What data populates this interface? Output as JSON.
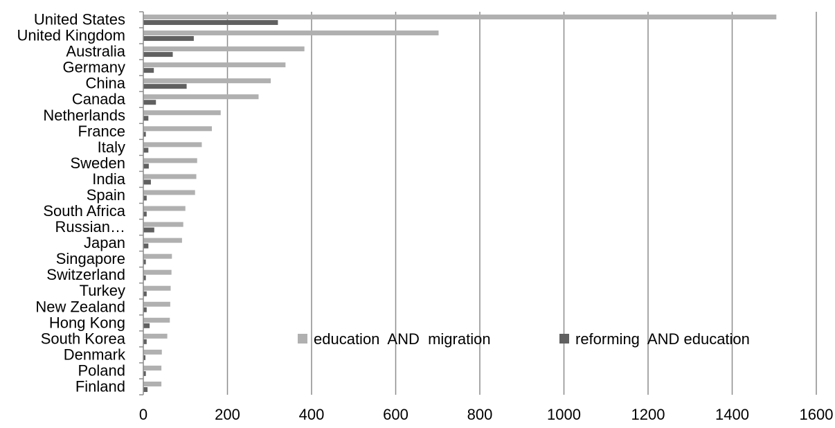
{
  "chart_data": {
    "type": "bar",
    "orientation": "horizontal",
    "categories": [
      "United States",
      "United Kingdom",
      "Australia",
      "Germany",
      "China",
      "Canada",
      "Netherlands",
      "France",
      "Italy",
      "Sweden",
      "India",
      "Spain",
      "South Africa",
      "Russian…",
      "Japan",
      "Singapore",
      "Switzerland",
      "Turkey",
      "New Zealand",
      "Hong Kong",
      "South Korea",
      "Denmark",
      "Poland",
      "Finland"
    ],
    "series": [
      {
        "name": "education  AND  migration",
        "color": "#b0b0b0",
        "values": [
          1505,
          702,
          383,
          338,
          303,
          274,
          184,
          163,
          139,
          128,
          126,
          123,
          100,
          95,
          92,
          68,
          67,
          65,
          64,
          63,
          57,
          44,
          43,
          43
        ]
      },
      {
        "name": "reforming  AND education",
        "color": "#606060",
        "values": [
          320,
          120,
          70,
          25,
          103,
          30,
          12,
          6,
          12,
          13,
          18,
          8,
          8,
          26,
          12,
          6,
          6,
          8,
          8,
          15,
          8,
          5,
          6,
          10
        ]
      }
    ],
    "xlim": [
      0,
      1600
    ],
    "xticks": [
      "0",
      "200",
      "400",
      "600",
      "800",
      "1000",
      "1200",
      "1400",
      "1600"
    ],
    "grid": true,
    "legend_position": "inside-bottom-right",
    "title": "",
    "xlabel": "",
    "ylabel": ""
  }
}
